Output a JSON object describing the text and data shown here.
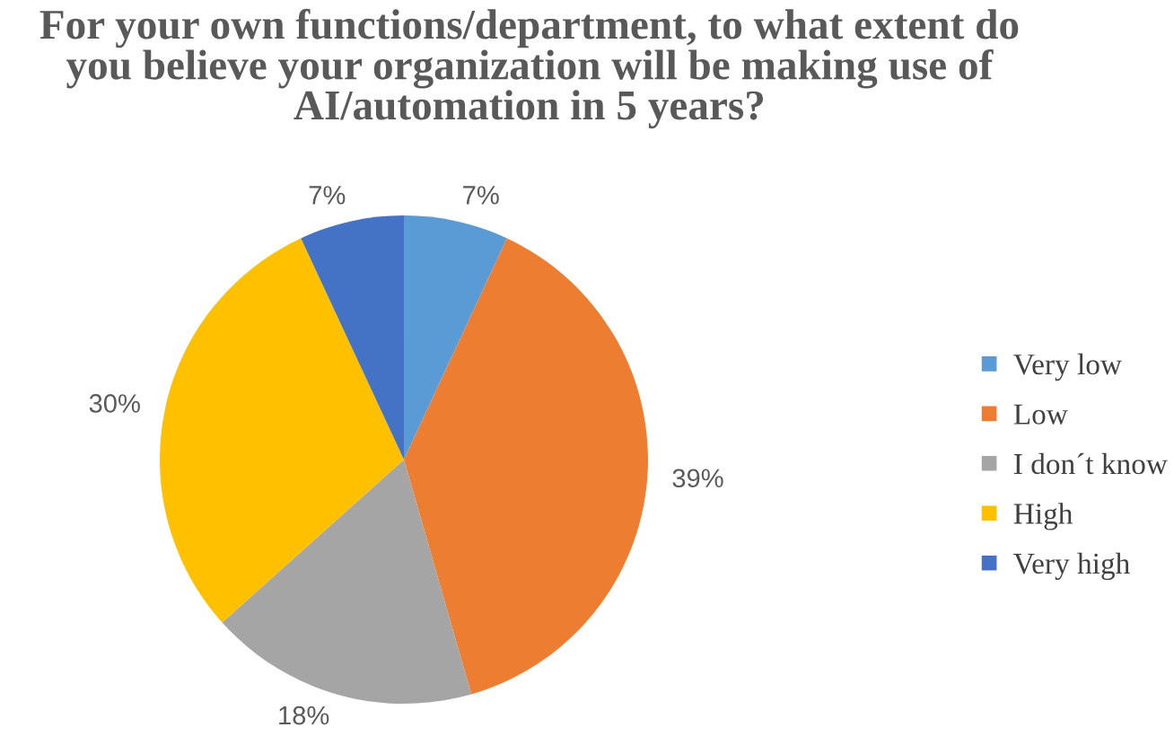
{
  "chart_data": {
    "type": "pie",
    "title": "For your own functions/department, to what extent do\nyou believe your organization will be making use of\nAI/automation in 5 years?",
    "categories": [
      "Very low",
      "Low",
      "I don´t know",
      "High",
      "Very high"
    ],
    "values": [
      7,
      39,
      18,
      30,
      7
    ],
    "value_labels": [
      "7%",
      "39%",
      "18%",
      "30%",
      "7%"
    ],
    "colors": [
      "#5b9bd5",
      "#ed7d31",
      "#a5a5a5",
      "#ffc000",
      "#4472c4"
    ],
    "legend": "right"
  }
}
